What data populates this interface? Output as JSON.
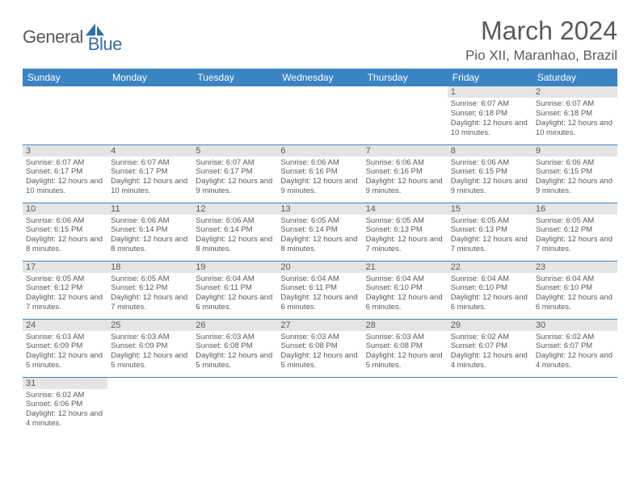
{
  "brand": {
    "part1": "General",
    "part2": "Blue"
  },
  "title": "March 2024",
  "location": "Pio XII, Maranhao, Brazil",
  "colors": {
    "header_bg": "#3b84c4",
    "header_text": "#ffffff",
    "daynum_bg": "#e5e5e5",
    "text": "#5a5a5a",
    "border": "#3b84c4",
    "logo_blue": "#2f6fad"
  },
  "day_headers": [
    "Sunday",
    "Monday",
    "Tuesday",
    "Wednesday",
    "Thursday",
    "Friday",
    "Saturday"
  ],
  "weeks": [
    [
      null,
      null,
      null,
      null,
      null,
      {
        "n": "1",
        "sr": "Sunrise: 6:07 AM",
        "ss": "Sunset: 6:18 PM",
        "dl": "Daylight: 12 hours and 10 minutes."
      },
      {
        "n": "2",
        "sr": "Sunrise: 6:07 AM",
        "ss": "Sunset: 6:18 PM",
        "dl": "Daylight: 12 hours and 10 minutes."
      }
    ],
    [
      {
        "n": "3",
        "sr": "Sunrise: 6:07 AM",
        "ss": "Sunset: 6:17 PM",
        "dl": "Daylight: 12 hours and 10 minutes."
      },
      {
        "n": "4",
        "sr": "Sunrise: 6:07 AM",
        "ss": "Sunset: 6:17 PM",
        "dl": "Daylight: 12 hours and 10 minutes."
      },
      {
        "n": "5",
        "sr": "Sunrise: 6:07 AM",
        "ss": "Sunset: 6:17 PM",
        "dl": "Daylight: 12 hours and 9 minutes."
      },
      {
        "n": "6",
        "sr": "Sunrise: 6:06 AM",
        "ss": "Sunset: 6:16 PM",
        "dl": "Daylight: 12 hours and 9 minutes."
      },
      {
        "n": "7",
        "sr": "Sunrise: 6:06 AM",
        "ss": "Sunset: 6:16 PM",
        "dl": "Daylight: 12 hours and 9 minutes."
      },
      {
        "n": "8",
        "sr": "Sunrise: 6:06 AM",
        "ss": "Sunset: 6:15 PM",
        "dl": "Daylight: 12 hours and 9 minutes."
      },
      {
        "n": "9",
        "sr": "Sunrise: 6:06 AM",
        "ss": "Sunset: 6:15 PM",
        "dl": "Daylight: 12 hours and 9 minutes."
      }
    ],
    [
      {
        "n": "10",
        "sr": "Sunrise: 6:06 AM",
        "ss": "Sunset: 6:15 PM",
        "dl": "Daylight: 12 hours and 8 minutes."
      },
      {
        "n": "11",
        "sr": "Sunrise: 6:06 AM",
        "ss": "Sunset: 6:14 PM",
        "dl": "Daylight: 12 hours and 8 minutes."
      },
      {
        "n": "12",
        "sr": "Sunrise: 6:06 AM",
        "ss": "Sunset: 6:14 PM",
        "dl": "Daylight: 12 hours and 8 minutes."
      },
      {
        "n": "13",
        "sr": "Sunrise: 6:05 AM",
        "ss": "Sunset: 6:14 PM",
        "dl": "Daylight: 12 hours and 8 minutes."
      },
      {
        "n": "14",
        "sr": "Sunrise: 6:05 AM",
        "ss": "Sunset: 6:13 PM",
        "dl": "Daylight: 12 hours and 7 minutes."
      },
      {
        "n": "15",
        "sr": "Sunrise: 6:05 AM",
        "ss": "Sunset: 6:13 PM",
        "dl": "Daylight: 12 hours and 7 minutes."
      },
      {
        "n": "16",
        "sr": "Sunrise: 6:05 AM",
        "ss": "Sunset: 6:12 PM",
        "dl": "Daylight: 12 hours and 7 minutes."
      }
    ],
    [
      {
        "n": "17",
        "sr": "Sunrise: 6:05 AM",
        "ss": "Sunset: 6:12 PM",
        "dl": "Daylight: 12 hours and 7 minutes."
      },
      {
        "n": "18",
        "sr": "Sunrise: 6:05 AM",
        "ss": "Sunset: 6:12 PM",
        "dl": "Daylight: 12 hours and 7 minutes."
      },
      {
        "n": "19",
        "sr": "Sunrise: 6:04 AM",
        "ss": "Sunset: 6:11 PM",
        "dl": "Daylight: 12 hours and 6 minutes."
      },
      {
        "n": "20",
        "sr": "Sunrise: 6:04 AM",
        "ss": "Sunset: 6:11 PM",
        "dl": "Daylight: 12 hours and 6 minutes."
      },
      {
        "n": "21",
        "sr": "Sunrise: 6:04 AM",
        "ss": "Sunset: 6:10 PM",
        "dl": "Daylight: 12 hours and 6 minutes."
      },
      {
        "n": "22",
        "sr": "Sunrise: 6:04 AM",
        "ss": "Sunset: 6:10 PM",
        "dl": "Daylight: 12 hours and 6 minutes."
      },
      {
        "n": "23",
        "sr": "Sunrise: 6:04 AM",
        "ss": "Sunset: 6:10 PM",
        "dl": "Daylight: 12 hours and 6 minutes."
      }
    ],
    [
      {
        "n": "24",
        "sr": "Sunrise: 6:03 AM",
        "ss": "Sunset: 6:09 PM",
        "dl": "Daylight: 12 hours and 5 minutes."
      },
      {
        "n": "25",
        "sr": "Sunrise: 6:03 AM",
        "ss": "Sunset: 6:09 PM",
        "dl": "Daylight: 12 hours and 5 minutes."
      },
      {
        "n": "26",
        "sr": "Sunrise: 6:03 AM",
        "ss": "Sunset: 6:08 PM",
        "dl": "Daylight: 12 hours and 5 minutes."
      },
      {
        "n": "27",
        "sr": "Sunrise: 6:03 AM",
        "ss": "Sunset: 6:08 PM",
        "dl": "Daylight: 12 hours and 5 minutes."
      },
      {
        "n": "28",
        "sr": "Sunrise: 6:03 AM",
        "ss": "Sunset: 6:08 PM",
        "dl": "Daylight: 12 hours and 5 minutes."
      },
      {
        "n": "29",
        "sr": "Sunrise: 6:02 AM",
        "ss": "Sunset: 6:07 PM",
        "dl": "Daylight: 12 hours and 4 minutes."
      },
      {
        "n": "30",
        "sr": "Sunrise: 6:02 AM",
        "ss": "Sunset: 6:07 PM",
        "dl": "Daylight: 12 hours and 4 minutes."
      }
    ],
    [
      {
        "n": "31",
        "sr": "Sunrise: 6:02 AM",
        "ss": "Sunset: 6:06 PM",
        "dl": "Daylight: 12 hours and 4 minutes."
      },
      null,
      null,
      null,
      null,
      null,
      null
    ]
  ]
}
